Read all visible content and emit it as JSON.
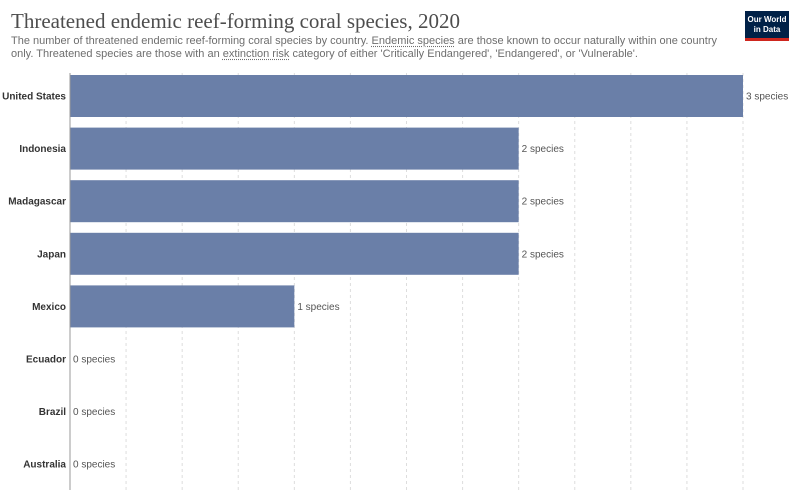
{
  "header": {
    "title": "Threatened endemic reef-forming coral species, 2020",
    "subtitle": {
      "part1": "The number of threatened endemic reef-forming coral species by country. ",
      "link1": "Endemic species",
      "part2": " are those known to occur naturally within one country only. Threatened species are those with an ",
      "link2": "extinction risk",
      "part3": " category of either 'Critically Endangered', 'Endangered', or 'Vulnerable'."
    }
  },
  "logo": {
    "line1": "Our World",
    "line2": "in Data"
  },
  "colors": {
    "bar": "#6a7fa8",
    "grid": "#dddddd",
    "axis": "#999999"
  },
  "chart_data": {
    "type": "bar",
    "orientation": "horizontal",
    "categories": [
      "United States",
      "Indonesia",
      "Madagascar",
      "Japan",
      "Mexico",
      "Ecuador",
      "Brazil",
      "Australia"
    ],
    "values": [
      3,
      2,
      2,
      2,
      1,
      0,
      0,
      0
    ],
    "value_labels": [
      "3 species",
      "2 species",
      "2 species",
      "2 species",
      "1 species",
      "0 species",
      "0 species",
      "0 species"
    ],
    "xlim": [
      0,
      3
    ],
    "grid": true,
    "legend": "none"
  }
}
